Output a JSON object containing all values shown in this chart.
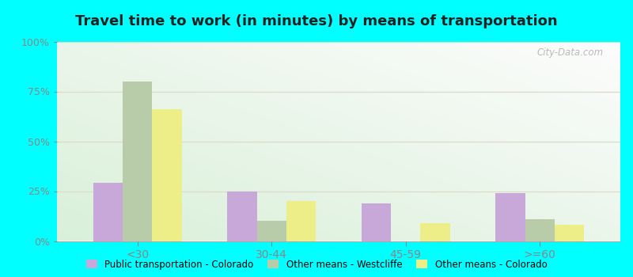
{
  "title": "Travel time to work (in minutes) by means of transportation",
  "categories": [
    "<30",
    "30-44",
    "45-59",
    ">=60"
  ],
  "series": [
    {
      "name": "Public transportation - Colorado",
      "values": [
        29,
        25,
        19,
        24
      ],
      "color": "#c8a8d8"
    },
    {
      "name": "Other means - Westcliffe",
      "values": [
        80,
        10,
        0,
        11
      ],
      "color": "#b8ccaa"
    },
    {
      "name": "Other means - Colorado",
      "values": [
        66,
        20,
        9,
        8
      ],
      "color": "#eeee88"
    }
  ],
  "ylim": [
    0,
    100
  ],
  "yticks": [
    0,
    25,
    50,
    75,
    100
  ],
  "ytick_labels": [
    "0%",
    "25%",
    "50%",
    "75%",
    "100%"
  ],
  "figure_bg": "#00ffff",
  "title_fontsize": 13,
  "watermark": "City-Data.com",
  "grid_color": "#ddddcc",
  "bar_width": 0.22
}
